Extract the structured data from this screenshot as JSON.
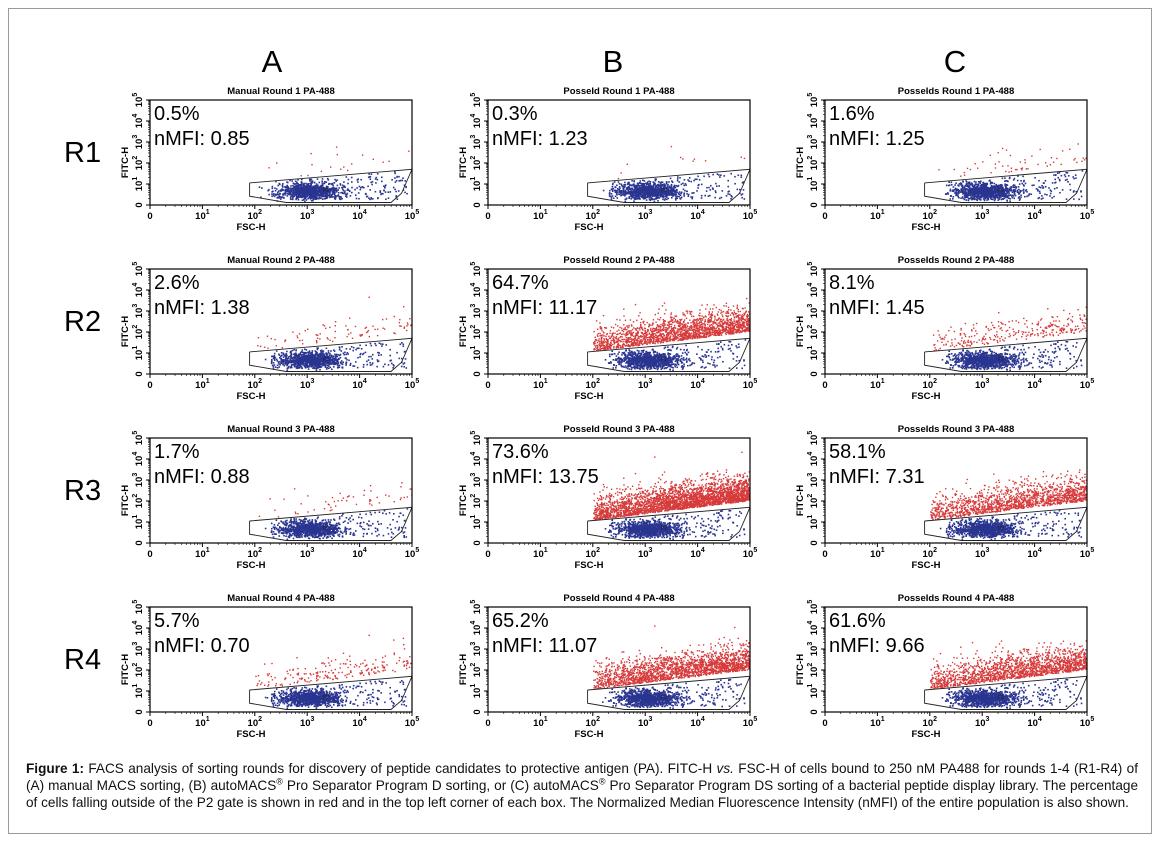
{
  "columns": [
    "A",
    "B",
    "C"
  ],
  "rows": [
    "R1",
    "R2",
    "R3",
    "R4"
  ],
  "axes": {
    "xlabel": "FSC-H",
    "ylabel": "FITC-H",
    "x_ticks": [
      "0",
      "10",
      "10",
      "10",
      "10",
      "10"
    ],
    "x_exponents": [
      "",
      "1",
      "2",
      "3",
      "4",
      "5"
    ],
    "y_ticks": [
      "0",
      "10",
      "10",
      "10",
      "10",
      "10"
    ],
    "y_exponents": [
      "",
      "1",
      "2",
      "3",
      "4",
      "5"
    ],
    "gate_label": "P2"
  },
  "colors": {
    "outside_gate": "#d63a3a",
    "inside_gate": "#2a3590",
    "frame": "#000000"
  },
  "chart_data": [
    {
      "type": "scatter",
      "col": "A",
      "row": "R1",
      "title": "Manual Round 1 PA-488",
      "percent_outside_gate": "0.5%",
      "nMFI": "nMFI: 0.85",
      "pct": 0.5
    },
    {
      "type": "scatter",
      "col": "B",
      "row": "R1",
      "title": "PosseId Round 1 PA-488",
      "percent_outside_gate": "0.3%",
      "nMFI": "nMFI: 1.23",
      "pct": 0.3
    },
    {
      "type": "scatter",
      "col": "C",
      "row": "R1",
      "title": "PosseIds Round 1 PA-488",
      "percent_outside_gate": "1.6%",
      "nMFI": "nMFI: 1.25",
      "pct": 1.6
    },
    {
      "type": "scatter",
      "col": "A",
      "row": "R2",
      "title": "Manual Round 2 PA-488",
      "percent_outside_gate": "2.6%",
      "nMFI": "nMFI: 1.38",
      "pct": 2.6
    },
    {
      "type": "scatter",
      "col": "B",
      "row": "R2",
      "title": "PosseId Round 2 PA-488",
      "percent_outside_gate": "64.7%",
      "nMFI": "nMFI: 11.17",
      "pct": 64.7
    },
    {
      "type": "scatter",
      "col": "C",
      "row": "R2",
      "title": "PosseIds Round 2 PA-488",
      "percent_outside_gate": "8.1%",
      "nMFI": "nMFI: 1.45",
      "pct": 8.1
    },
    {
      "type": "scatter",
      "col": "A",
      "row": "R3",
      "title": "Manual Round 3 PA-488",
      "percent_outside_gate": "1.7%",
      "nMFI": "nMFI: 0.88",
      "pct": 1.7
    },
    {
      "type": "scatter",
      "col": "B",
      "row": "R3",
      "title": "PosseId Round 3 PA-488",
      "percent_outside_gate": "73.6%",
      "nMFI": "nMFI: 13.75",
      "pct": 73.6
    },
    {
      "type": "scatter",
      "col": "C",
      "row": "R3",
      "title": "PosseIds Round 3 PA-488",
      "percent_outside_gate": "58.1%",
      "nMFI": "nMFI: 7.31",
      "pct": 58.1
    },
    {
      "type": "scatter",
      "col": "A",
      "row": "R4",
      "title": "Manual Round 4 PA-488",
      "percent_outside_gate": "5.7%",
      "nMFI": "nMFI: 0.70",
      "pct": 5.7
    },
    {
      "type": "scatter",
      "col": "B",
      "row": "R4",
      "title": "PosseId Round 4 PA-488",
      "percent_outside_gate": "65.2%",
      "nMFI": "nMFI: 11.07",
      "pct": 65.2
    },
    {
      "type": "scatter",
      "col": "C",
      "row": "R4",
      "title": "PosseIds Round 4 PA-488",
      "percent_outside_gate": "61.6%",
      "nMFI": "nMFI: 9.66",
      "pct": 61.6
    }
  ],
  "caption": {
    "label": "Figure 1:",
    "t1": " FACS analysis of sorting rounds for discovery of peptide candidates to protective antigen (PA). FITC-H ",
    "vs": "vs.",
    "t2": " FSC-H of cells bound to 250 nM PA488 for rounds 1-4 (R1-R4) of (A) manual MACS sorting, (B) autoMACS",
    "reg1": "®",
    "t3": " Pro Separator Program D sorting, or (C) autoMACS",
    "reg2": "®",
    "t4": " Pro Separator Program DS sorting of a bacterial peptide display library. The percentage of cells falling outside of the P2 gate is shown in red and in the top left corner of each box.  The Normalized Median Fluorescence Intensity (nMFI) of the entire population is also shown."
  }
}
